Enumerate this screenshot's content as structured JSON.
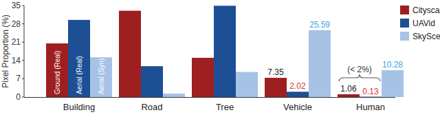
{
  "chart_data": {
    "type": "bar",
    "y_label": "Pixel Proportion (%)",
    "categories": [
      "Building",
      "Road",
      "Tree",
      "Vehicle",
      "Human"
    ],
    "series": [
      {
        "name": "Cityscapes",
        "color": "#9e1f1f",
        "note": "Ground (Real)",
        "values": [
          20.5,
          33.0,
          15.0,
          7.35,
          1.06
        ],
        "value_labels": [
          null,
          null,
          null,
          "7.35",
          "1.06"
        ]
      },
      {
        "name": "UAVid",
        "color": "#1d4f94",
        "note": "Aerial (Real)",
        "values": [
          29.5,
          11.8,
          34.9,
          2.02,
          0.13
        ],
        "value_labels": [
          null,
          null,
          null,
          "2.02",
          "0.13"
        ]
      },
      {
        "name": "SkyScenes",
        "color": "#a6c3e6",
        "note": "Aerial (Syn)",
        "values": [
          15.2,
          1.3,
          9.6,
          25.59,
          10.28
        ],
        "value_labels": [
          null,
          null,
          null,
          "25.59",
          "10.28"
        ]
      }
    ],
    "annotations": [
      {
        "text": "(< 2%)",
        "category": "Human"
      }
    ],
    "ylim": [
      0,
      35
    ],
    "yticks": [
      0,
      7,
      14,
      21,
      28,
      35
    ],
    "grid": false,
    "legend": "upper right",
    "data_labels": true
  }
}
